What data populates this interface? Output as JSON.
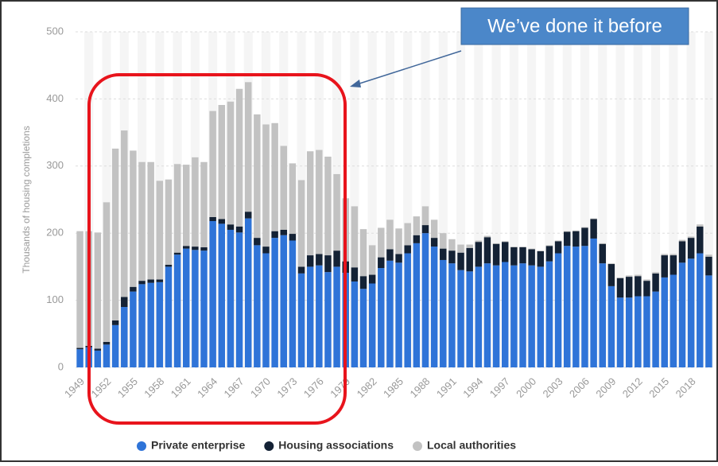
{
  "chart_data": {
    "type": "stacked_bar",
    "y_label": "Thousands of housing completions",
    "annotation": "We’ve done it before",
    "categories": [
      "1949",
      null,
      null,
      "1952",
      null,
      null,
      "1955",
      null,
      null,
      "1958",
      null,
      null,
      "1961",
      null,
      null,
      "1964",
      null,
      null,
      "1967",
      null,
      null,
      "1970",
      null,
      null,
      "1973",
      null,
      null,
      "1976",
      null,
      null,
      "1979",
      null,
      null,
      "1982",
      null,
      null,
      "1985",
      null,
      null,
      "1988",
      null,
      null,
      "1991",
      null,
      null,
      "1994",
      null,
      null,
      "1997",
      null,
      null,
      "2000",
      null,
      null,
      "2003",
      null,
      null,
      "2006",
      null,
      null,
      "2009",
      null,
      null,
      "2012",
      null,
      null,
      "2015",
      null,
      null,
      "2018",
      null,
      null
    ],
    "series": [
      {
        "name": "Private enterprise",
        "color": "#2f74d8",
        "values": [
          27,
          30,
          25,
          34,
          63,
          90,
          113,
          124,
          126,
          127,
          150,
          168,
          177,
          175,
          174,
          218,
          214,
          205,
          201,
          222,
          182,
          170,
          193,
          197,
          189,
          140,
          150,
          152,
          142,
          150,
          141,
          128,
          117,
          125,
          148,
          159,
          156,
          170,
          185,
          200,
          180,
          160,
          155,
          145,
          143,
          150,
          155,
          152,
          157,
          152,
          155,
          152,
          150,
          158,
          170,
          181,
          180,
          181,
          192,
          155,
          121,
          104,
          104,
          106,
          106,
          113,
          134,
          138,
          156,
          162,
          170,
          137
        ]
      },
      {
        "name": "Housing associations",
        "color": "#142235",
        "values": [
          2,
          2,
          3,
          4,
          7,
          15,
          7,
          5,
          5,
          4,
          3,
          3,
          4,
          5,
          5,
          6,
          7,
          8,
          9,
          10,
          11,
          10,
          10,
          8,
          10,
          10,
          17,
          17,
          25,
          24,
          17,
          21,
          19,
          13,
          16,
          17,
          13,
          12,
          12,
          12,
          13,
          17,
          19,
          26,
          35,
          37,
          39,
          32,
          30,
          27,
          24,
          24,
          23,
          23,
          18,
          21,
          23,
          27,
          29,
          29,
          33,
          29,
          31,
          30,
          23,
          27,
          33,
          29,
          32,
          31,
          40,
          28
        ]
      },
      {
        "name": "Local authorities",
        "color": "#c2c2c2",
        "values": [
          174,
          171,
          173,
          208,
          256,
          248,
          203,
          177,
          175,
          147,
          127,
          132,
          121,
          133,
          127,
          158,
          170,
          183,
          205,
          193,
          184,
          182,
          161,
          125,
          105,
          129,
          155,
          155,
          147,
          114,
          94,
          91,
          70,
          44,
          44,
          44,
          38,
          33,
          28,
          28,
          27,
          23,
          17,
          12,
          5,
          2,
          2,
          1,
          1,
          1,
          1,
          1,
          1,
          1,
          1,
          1,
          1,
          1,
          1,
          1,
          1,
          1,
          2,
          2,
          2,
          2,
          2,
          2,
          2,
          2,
          3,
          3
        ]
      }
    ],
    "ylim": [
      0,
      500
    ],
    "yticks": [
      0,
      100,
      200,
      300,
      400,
      500
    ],
    "grid": true
  }
}
